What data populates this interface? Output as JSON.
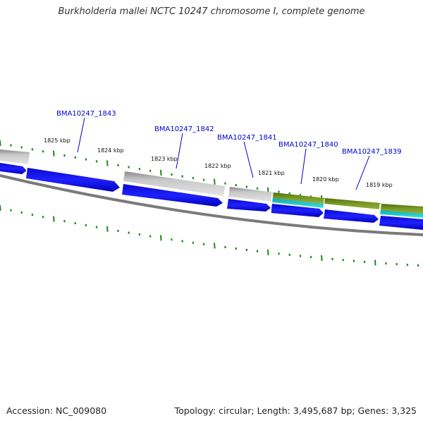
{
  "title": "Burkholderia mallei NCTC 10247 chromosome I, complete genome",
  "footer": {
    "accession": "Accession: NC_009080",
    "summary": "Topology: circular; Length: 3,495,687 bp; Genes: 3,325"
  },
  "colors": {
    "cds_forward": "#1010dd",
    "cds_gray": "#b8b8b8",
    "olive_feature": "#6b8a1c",
    "cyan_feature": "#19c0c0",
    "backbone": "#7a7a7a",
    "ticks": "#1a8a1a",
    "gene_label": "#0000cc"
  },
  "tick_labels": [
    "1825 kbp",
    "1824 kbp",
    "1823 kbp",
    "1822 kbp",
    "1821 kbp",
    "1820 kbp",
    "1819 kbp"
  ],
  "gene_labels": [
    "BMA10247_1843",
    "BMA10247_1842",
    "BMA10247_1841",
    "BMA10247_1840",
    "BMA10247_1839"
  ]
}
